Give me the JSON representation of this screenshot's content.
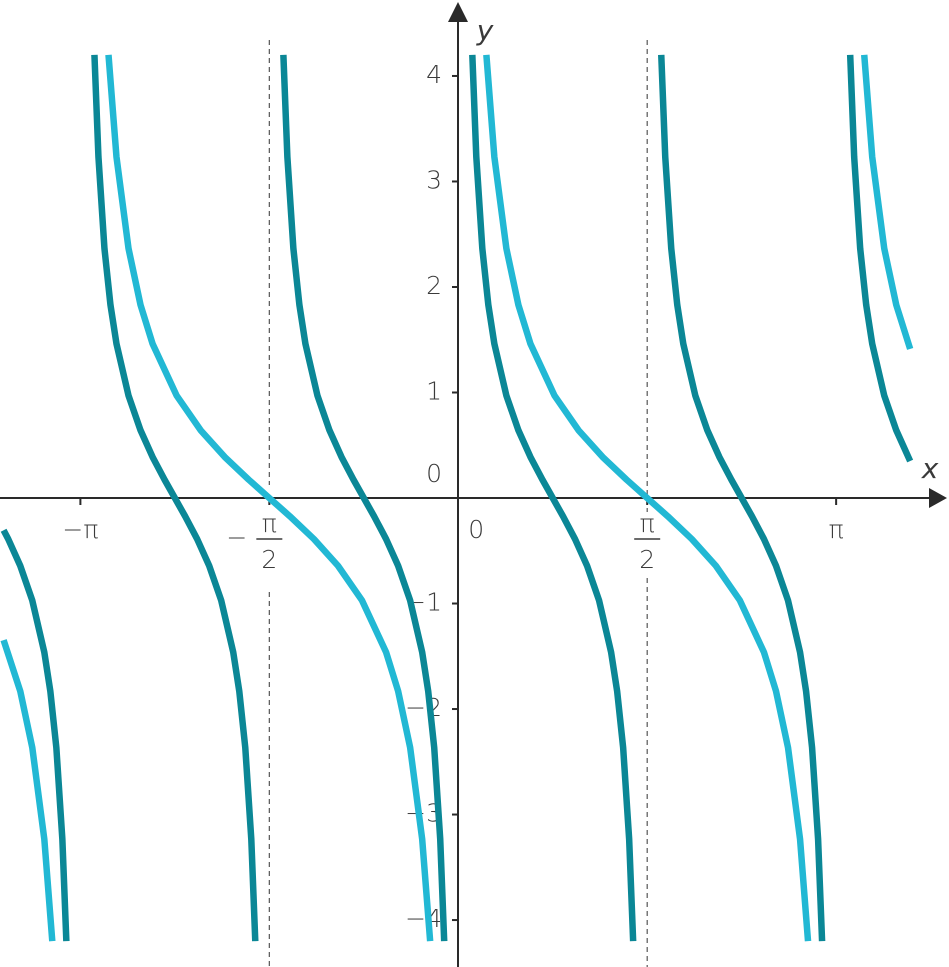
{
  "chart_data": {
    "type": "line",
    "x_label": "x",
    "y_label": "y",
    "xlim": [
      -3.81,
      4.08
    ],
    "ylim": [
      -4.445,
      4.72
    ],
    "xticks": [
      {
        "value": -3.1416,
        "label": "−π"
      },
      {
        "value": -1.5708,
        "label": {
          "sign": "−",
          "numerator": "π",
          "denominator": "2"
        }
      },
      {
        "value": 0,
        "label": "0"
      },
      {
        "value": 1.5708,
        "label": {
          "numerator": "π",
          "denominator": "2"
        }
      },
      {
        "value": 3.1416,
        "label": "π"
      }
    ],
    "yticks": [
      {
        "value": -4,
        "label": "−4"
      },
      {
        "value": -3,
        "label": "−3"
      },
      {
        "value": -2,
        "label": "−2"
      },
      {
        "value": -1,
        "label": "−1"
      },
      0,
      1,
      2,
      3,
      4
    ],
    "asymptotes": [
      -1.5708,
      1.5708
    ],
    "series": [
      {
        "color": "#22b8d4",
        "x": [
          -3.78,
          -3.6416,
          -3.5416,
          -3.4416,
          -3.3753,
          null,
          -2.9079,
          -2.8416,
          -2.7416,
          -2.6416,
          -2.5416,
          -2.3416,
          -2.1416,
          -1.9416,
          -1.7416,
          -1.5708,
          -1.4,
          -1.2,
          -1.0,
          -0.8,
          -0.6,
          -0.5,
          -0.4,
          -0.3,
          -0.2337,
          null,
          0.2337,
          0.3,
          0.4,
          0.5,
          0.6,
          0.8,
          1.0,
          1.2,
          1.4,
          1.5708,
          1.7416,
          1.9416,
          2.1416,
          2.3416,
          2.5416,
          2.6416,
          2.7416,
          2.8416,
          2.9079,
          null,
          3.3753,
          3.4416,
          3.5416,
          3.6416,
          3.757
        ],
        "values": [
          -1.347,
          -1.83,
          -2.365,
          -3.233,
          -4.2,
          null,
          4.2,
          3.233,
          2.365,
          1.83,
          1.462,
          0.971,
          0.642,
          0.389,
          0.173,
          0,
          -0.173,
          -0.389,
          -0.642,
          -0.971,
          -1.462,
          -1.83,
          -2.365,
          -3.233,
          -4.2,
          null,
          4.2,
          3.233,
          2.365,
          1.83,
          1.462,
          0.971,
          0.642,
          0.389,
          0.173,
          0,
          -0.173,
          -0.389,
          -0.642,
          -0.971,
          -1.462,
          -1.83,
          -2.365,
          -3.233,
          -4.2,
          null,
          4.2,
          3.233,
          2.365,
          1.83,
          1.413
        ]
      },
      {
        "color": "#0b8796",
        "x": [
          -3.78,
          -3.7416,
          -3.6416,
          -3.5416,
          -3.4416,
          -3.3916,
          -3.3416,
          -3.2916,
          -3.2584,
          null,
          -3.0248,
          -2.9916,
          -2.9416,
          -2.8916,
          -2.8416,
          -2.7416,
          -2.6416,
          -2.5416,
          -2.4416,
          -2.3562,
          -2.2708,
          -2.1708,
          -2.0708,
          -1.9708,
          -1.8708,
          -1.8208,
          -1.7708,
          -1.7208,
          -1.6876,
          null,
          -1.454,
          -1.4208,
          -1.3708,
          -1.3208,
          -1.2708,
          -1.1708,
          -1.0708,
          -0.9708,
          -0.8708,
          -0.7854,
          -0.7,
          -0.6,
          -0.5,
          -0.4,
          -0.3,
          -0.25,
          -0.2,
          -0.15,
          -0.1169,
          null,
          0.1169,
          0.15,
          0.2,
          0.25,
          0.3,
          0.4,
          0.5,
          0.6,
          0.7,
          0.7854,
          0.8708,
          0.9708,
          1.0708,
          1.1708,
          1.2708,
          1.3208,
          1.3708,
          1.4208,
          1.454,
          null,
          1.6877,
          1.7208,
          1.7708,
          1.8208,
          1.8708,
          1.9708,
          2.0708,
          2.1708,
          2.2708,
          2.3562,
          2.4416,
          2.5416,
          2.6416,
          2.7416,
          2.8416,
          2.8916,
          2.9416,
          2.9916,
          3.0248,
          null,
          3.2585,
          3.2916,
          3.3416,
          3.3916,
          3.4416,
          3.5416,
          3.6416,
          3.7416,
          3.757
        ],
        "values": [
          -0.306,
          -0.389,
          -0.642,
          -0.971,
          -1.462,
          -1.83,
          -2.365,
          -3.233,
          -4.2,
          null,
          4.2,
          3.233,
          2.365,
          1.83,
          1.462,
          0.971,
          0.642,
          0.389,
          0.173,
          0,
          -0.173,
          -0.389,
          -0.642,
          -0.971,
          -1.462,
          -1.83,
          -2.365,
          -3.233,
          -4.2,
          null,
          4.2,
          3.233,
          2.365,
          1.83,
          1.462,
          0.971,
          0.642,
          0.389,
          0.173,
          0,
          -0.173,
          -0.389,
          -0.642,
          -0.971,
          -1.462,
          -1.83,
          -2.365,
          -3.233,
          -4.2,
          null,
          4.2,
          3.233,
          2.365,
          1.83,
          1.462,
          0.971,
          0.642,
          0.389,
          0.173,
          0,
          -0.173,
          -0.389,
          -0.642,
          -0.971,
          -1.462,
          -1.83,
          -2.365,
          -3.233,
          -4.2,
          null,
          4.2,
          3.233,
          2.365,
          1.83,
          1.462,
          0.971,
          0.642,
          0.389,
          0.173,
          0,
          -0.173,
          -0.389,
          -0.642,
          -0.971,
          -1.462,
          -1.83,
          -2.365,
          -3.233,
          -4.2,
          null,
          4.2,
          3.233,
          2.365,
          1.83,
          1.462,
          0.971,
          0.642,
          0.389,
          0.35
        ]
      }
    ]
  }
}
